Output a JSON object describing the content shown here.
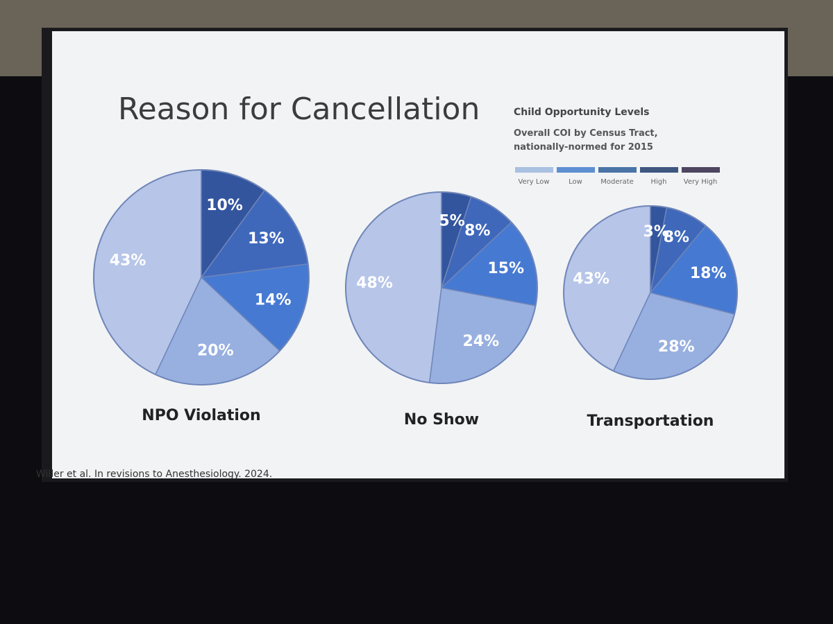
{
  "slide": {
    "title": "Reason for Cancellation",
    "legend": {
      "title": "Child Opportunity Levels",
      "subtitle": "Overall COI by Census Tract, nationally-normed for 2015",
      "items": [
        {
          "label": "Very Low",
          "color": "#a9c0e0"
        },
        {
          "label": "Low",
          "color": "#5d8fd2"
        },
        {
          "label": "Moderate",
          "color": "#4a74a6"
        },
        {
          "label": "High",
          "color": "#3f5680"
        },
        {
          "label": "Very High",
          "color": "#4e4660"
        }
      ]
    },
    "citation": "Willer et al. In revisions to Anesthesiology. 2024."
  },
  "chart_data": [
    {
      "type": "pie",
      "title": "NPO Violation",
      "values": [
        43,
        20,
        14,
        13,
        10
      ],
      "value_labels": [
        "43%",
        "20%",
        "14%",
        "13%",
        "10%"
      ],
      "colors": [
        "#b6c5e8",
        "#98b0e0",
        "#4679d2",
        "#3f68bb",
        "#33559e"
      ]
    },
    {
      "type": "pie",
      "title": "No Show",
      "values": [
        48,
        24,
        15,
        8,
        5
      ],
      "value_labels": [
        "48%",
        "24%",
        "15%",
        "8%",
        "5%"
      ],
      "colors": [
        "#b6c5e8",
        "#98b0e0",
        "#4679d2",
        "#3f68bb",
        "#33559e"
      ]
    },
    {
      "type": "pie",
      "title": "Transportation",
      "values": [
        43,
        28,
        18,
        8,
        3
      ],
      "value_labels": [
        "43%",
        "28%",
        "18%",
        "8%",
        "3%"
      ],
      "colors": [
        "#b6c5e8",
        "#98b0e0",
        "#4679d2",
        "#3f68bb",
        "#33559e"
      ]
    }
  ]
}
